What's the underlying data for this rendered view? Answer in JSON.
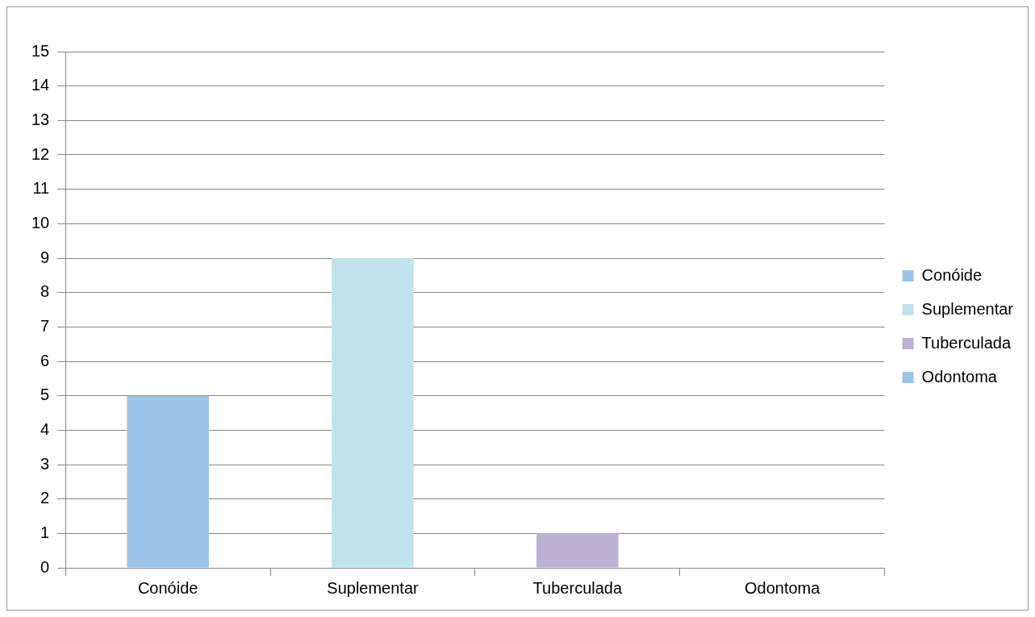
{
  "chart_data": {
    "type": "bar",
    "categories": [
      "Conóide",
      "Suplementar",
      "Tuberculada",
      "Odontoma"
    ],
    "series": [
      {
        "name": "Conóide",
        "color": "#9dc3e7",
        "values": [
          5,
          null,
          null,
          null
        ]
      },
      {
        "name": "Suplementar",
        "color": "#c0e2ea",
        "values": [
          null,
          9,
          null,
          null
        ]
      },
      {
        "name": "Tuberculada",
        "color": "#bdb1d3",
        "values": [
          null,
          null,
          1,
          null
        ]
      },
      {
        "name": "Odontoma",
        "color": "#9dc3e7",
        "values": [
          null,
          null,
          null,
          0
        ]
      }
    ],
    "stacked": true,
    "ylim": [
      0,
      15
    ],
    "yticks": [
      0,
      1,
      2,
      3,
      4,
      5,
      6,
      7,
      8,
      9,
      10,
      11,
      12,
      13,
      14,
      15
    ],
    "grid": "y",
    "legend": "right"
  }
}
